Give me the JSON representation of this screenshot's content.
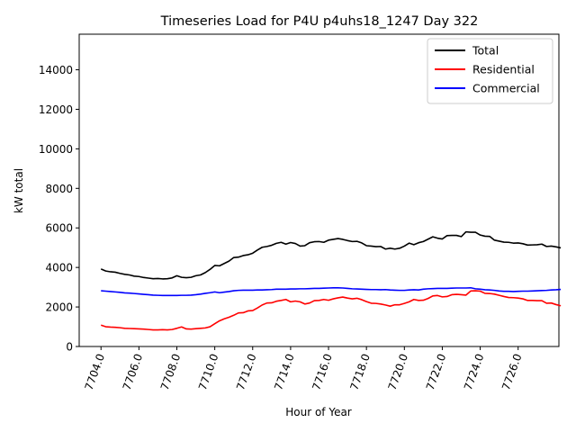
{
  "chart_data": {
    "type": "line",
    "title": "Timeseries Load for P4U p4uhs18_1247  Day 322",
    "xlabel": "Hour of Year",
    "ylabel": "kW total",
    "xlim": [
      7702.85,
      7728.15
    ],
    "ylim": [
      0,
      15800
    ],
    "x_ticks": [
      7704,
      7706,
      7708,
      7710,
      7712,
      7714,
      7716,
      7718,
      7720,
      7722,
      7724,
      7726
    ],
    "x_tick_labels": [
      "7704.0",
      "7706.0",
      "7708.0",
      "7710.0",
      "7712.0",
      "7714.0",
      "7716.0",
      "7718.0",
      "7720.0",
      "7722.0",
      "7724.0",
      "7726.0"
    ],
    "y_ticks": [
      0,
      2000,
      4000,
      6000,
      8000,
      10000,
      12000,
      14000
    ],
    "y_tick_labels": [
      "0",
      "2000",
      "4000",
      "6000",
      "8000",
      "10000",
      "12000",
      "14000"
    ],
    "x_start": 7704.0,
    "x_step": 0.25,
    "legend_position": "top-right",
    "series": [
      {
        "name": "Total",
        "color": "#000000",
        "values": [
          3920,
          3820,
          3780,
          3760,
          3700,
          3650,
          3620,
          3560,
          3540,
          3490,
          3460,
          3430,
          3440,
          3420,
          3430,
          3470,
          3580,
          3500,
          3480,
          3500,
          3580,
          3620,
          3740,
          3900,
          4100,
          4080,
          4200,
          4320,
          4500,
          4520,
          4600,
          4640,
          4720,
          4880,
          5020,
          5060,
          5120,
          5220,
          5270,
          5180,
          5260,
          5210,
          5080,
          5100,
          5250,
          5300,
          5310,
          5270,
          5380,
          5420,
          5460,
          5420,
          5360,
          5310,
          5320,
          5240,
          5100,
          5080,
          5050,
          5060,
          4930,
          4970,
          4930,
          4970,
          5080,
          5230,
          5150,
          5250,
          5310,
          5430,
          5550,
          5480,
          5440,
          5610,
          5620,
          5620,
          5560,
          5800,
          5780,
          5780,
          5640,
          5580,
          5570,
          5380,
          5330,
          5280,
          5270,
          5230,
          5240,
          5200,
          5130,
          5140,
          5150,
          5180,
          5060,
          5080,
          5040,
          4990
        ],
        "label": "Total"
      },
      {
        "name": "Residential",
        "color": "#ff0000",
        "values": [
          1080,
          1000,
          980,
          970,
          950,
          920,
          910,
          900,
          890,
          880,
          860,
          840,
          840,
          850,
          840,
          860,
          920,
          990,
          890,
          880,
          900,
          920,
          940,
          1000,
          1150,
          1300,
          1400,
          1480,
          1580,
          1700,
          1710,
          1800,
          1820,
          1950,
          2100,
          2200,
          2210,
          2290,
          2330,
          2380,
          2260,
          2300,
          2260,
          2150,
          2200,
          2320,
          2330,
          2380,
          2340,
          2410,
          2460,
          2500,
          2450,
          2410,
          2440,
          2370,
          2270,
          2190,
          2180,
          2150,
          2100,
          2040,
          2110,
          2110,
          2180,
          2260,
          2380,
          2330,
          2340,
          2430,
          2560,
          2580,
          2510,
          2530,
          2620,
          2640,
          2620,
          2600,
          2810,
          2820,
          2800,
          2690,
          2680,
          2650,
          2590,
          2530,
          2480,
          2470,
          2450,
          2410,
          2330,
          2330,
          2320,
          2320,
          2190,
          2200,
          2120,
          2060
        ],
        "label": "Residential"
      },
      {
        "name": "Commercial",
        "color": "#0000ff",
        "values": [
          2820,
          2800,
          2780,
          2760,
          2740,
          2710,
          2700,
          2680,
          2660,
          2640,
          2620,
          2600,
          2590,
          2580,
          2580,
          2580,
          2580,
          2590,
          2590,
          2600,
          2620,
          2650,
          2690,
          2720,
          2760,
          2720,
          2750,
          2780,
          2820,
          2840,
          2850,
          2850,
          2850,
          2860,
          2860,
          2870,
          2880,
          2900,
          2900,
          2900,
          2910,
          2910,
          2920,
          2920,
          2930,
          2940,
          2940,
          2950,
          2960,
          2970,
          2970,
          2960,
          2940,
          2920,
          2910,
          2900,
          2890,
          2880,
          2880,
          2870,
          2880,
          2860,
          2850,
          2840,
          2840,
          2860,
          2870,
          2860,
          2900,
          2920,
          2930,
          2940,
          2940,
          2940,
          2950,
          2960,
          2960,
          2960,
          2970,
          2920,
          2900,
          2870,
          2860,
          2840,
          2810,
          2790,
          2790,
          2780,
          2790,
          2800,
          2800,
          2810,
          2820,
          2830,
          2840,
          2860,
          2870,
          2890
        ],
        "label": "Commercial"
      }
    ]
  }
}
